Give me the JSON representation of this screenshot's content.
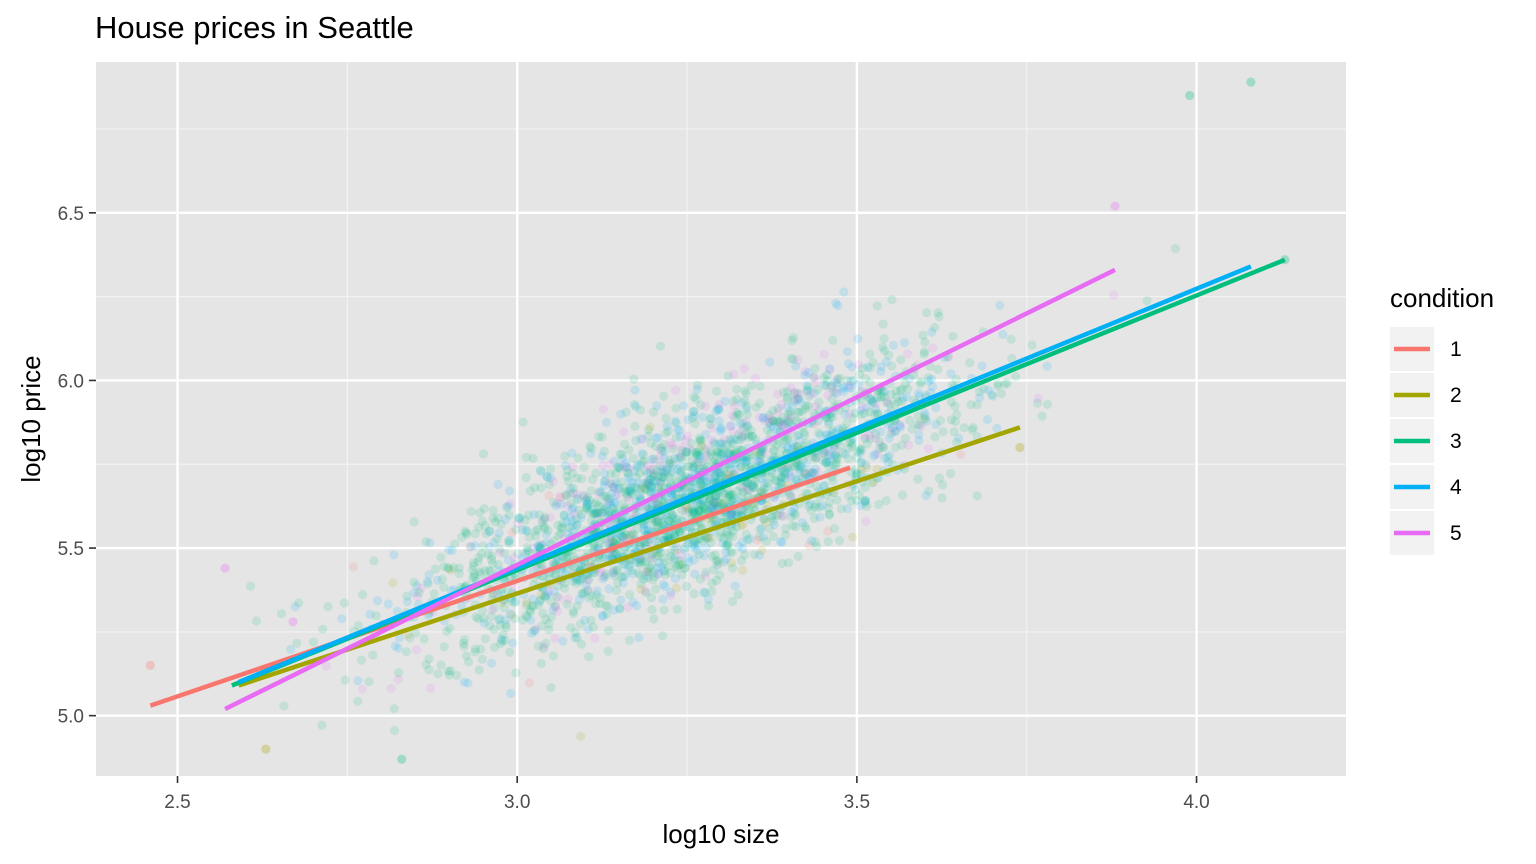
{
  "chart_data": {
    "type": "scatter",
    "title": "House prices in Seattle",
    "xlabel": "log10 size",
    "ylabel": "log10 price",
    "xlim": [
      2.38,
      4.22
    ],
    "ylim": [
      4.82,
      6.95
    ],
    "x_ticks": [
      2.5,
      3.0,
      3.5,
      4.0
    ],
    "x_tick_labels": [
      "2.5",
      "3.0",
      "3.5",
      "4.0"
    ],
    "y_ticks": [
      5.0,
      5.5,
      6.0,
      6.5
    ],
    "y_tick_labels": [
      "5.0",
      "5.5",
      "6.0",
      "6.5"
    ],
    "grid": true,
    "background": "#e5e5e5",
    "legend": {
      "title": "condition",
      "position": "right"
    },
    "series": [
      {
        "name": "1",
        "color": "#F8766D",
        "fit_line": {
          "x": [
            2.46,
            3.49
          ],
          "y": [
            5.03,
            5.74
          ]
        }
      },
      {
        "name": "2",
        "color": "#A3A500",
        "fit_line": {
          "x": [
            2.59,
            3.74
          ],
          "y": [
            5.09,
            5.86
          ]
        }
      },
      {
        "name": "3",
        "color": "#00BF7D",
        "fit_line": {
          "x": [
            2.58,
            4.13
          ],
          "y": [
            5.09,
            6.36
          ]
        }
      },
      {
        "name": "4",
        "color": "#00B0F6",
        "fit_line": {
          "x": [
            2.59,
            4.08
          ],
          "y": [
            5.1,
            6.34
          ]
        }
      },
      {
        "name": "5",
        "color": "#E76BF3",
        "fit_line": {
          "x": [
            2.57,
            3.88
          ],
          "y": [
            5.02,
            6.33
          ]
        }
      }
    ],
    "scatter_points": {
      "alpha": 0.15,
      "cloud_center": {
        "x": 3.25,
        "y": 5.67
      },
      "notable_points": [
        {
          "x": 4.08,
          "y": 6.89,
          "series": "3"
        },
        {
          "x": 3.99,
          "y": 6.85,
          "series": "3"
        },
        {
          "x": 4.13,
          "y": 6.36,
          "series": "3"
        },
        {
          "x": 2.46,
          "y": 5.15,
          "series": "1"
        },
        {
          "x": 2.57,
          "y": 5.44,
          "series": "5"
        },
        {
          "x": 2.63,
          "y": 4.9,
          "series": "2"
        },
        {
          "x": 2.83,
          "y": 4.87,
          "series": "3"
        },
        {
          "x": 3.88,
          "y": 6.52,
          "series": "5"
        },
        {
          "x": 3.74,
          "y": 5.8,
          "series": "2"
        },
        {
          "x": 2.67,
          "y": 5.28,
          "series": "5"
        }
      ]
    }
  }
}
